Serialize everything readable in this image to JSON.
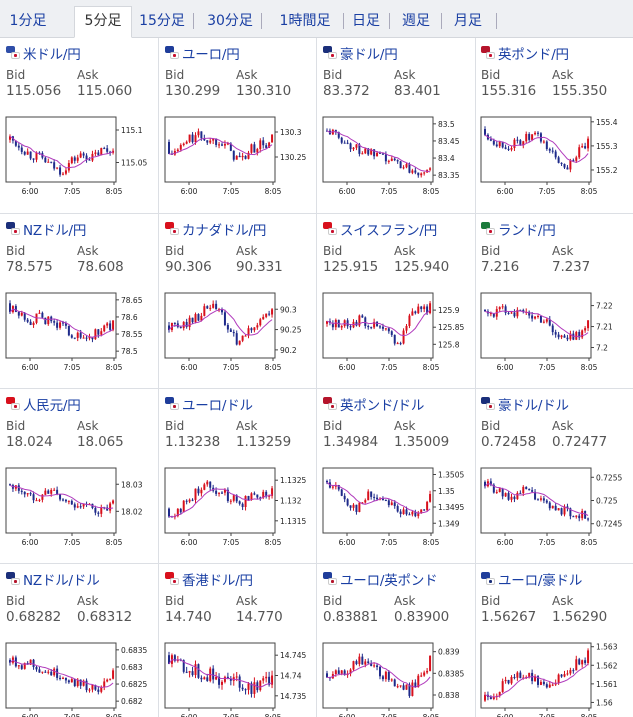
{
  "tabs": [
    {
      "label": "1分足",
      "active": false
    },
    {
      "label": "5分足",
      "active": true
    },
    {
      "label": "15分足",
      "active": false
    },
    {
      "label": "30分足",
      "active": false
    },
    {
      "label": "1時間足",
      "active": false
    },
    {
      "label": "日足",
      "active": false
    },
    {
      "label": "週足",
      "active": false
    },
    {
      "label": "月足",
      "active": false
    }
  ],
  "labels": {
    "bid": "Bid",
    "ask": "Ask"
  },
  "time_labels": [
    "6:00",
    "7:05",
    "8:05"
  ],
  "colors": {
    "up": "#d8101c",
    "down": "#1e2a8a",
    "ma": "#b13bbd",
    "link": "#1a3fa3"
  },
  "pairs": [
    {
      "name": "米ドル/円",
      "flags": [
        "#2f4ea8",
        "#c8102e"
      ],
      "bid": "115.056",
      "ask": "115.060",
      "chart_data": {
        "type": "candlestick",
        "y_ticks": [
          "115.1",
          "115.05"
        ],
        "ylim": [
          115.02,
          115.12
        ],
        "open": 115.085,
        "close": 115.068,
        "trend": [
          0.7,
          0.55,
          0.4,
          0.35,
          0.2,
          0.1,
          0.3,
          0.4,
          0.35,
          0.5,
          0.45
        ],
        "vol": 0.35
      }
    },
    {
      "name": "ユーロ/円",
      "flags": [
        "#1f3d9a",
        "#c8102e"
      ],
      "bid": "130.299",
      "ask": "130.310",
      "chart_data": {
        "type": "candlestick",
        "y_ticks": [
          "130.3",
          "130.25"
        ],
        "ylim": [
          130.2,
          130.33
        ],
        "open": 130.28,
        "close": 130.295,
        "trend": [
          0.4,
          0.5,
          0.7,
          0.75,
          0.65,
          0.7,
          0.45,
          0.3,
          0.5,
          0.6,
          0.55
        ],
        "vol": 0.45
      }
    },
    {
      "name": "豪ドル/円",
      "flags": [
        "#1b2f7a",
        "#c8102e"
      ],
      "bid": "83.372",
      "ask": "83.401",
      "chart_data": {
        "type": "candlestick",
        "y_ticks": [
          "83.5",
          "83.45",
          "83.4",
          "83.35"
        ],
        "ylim": [
          83.33,
          83.52
        ],
        "open": 83.48,
        "close": 83.37,
        "trend": [
          0.85,
          0.75,
          0.6,
          0.5,
          0.45,
          0.35,
          0.3,
          0.25,
          0.15,
          0.1,
          0.2
        ],
        "vol": 0.3
      }
    },
    {
      "name": "英ポンド/円",
      "flags": [
        "#b5142b",
        "#c8102e"
      ],
      "bid": "155.316",
      "ask": "155.350",
      "chart_data": {
        "type": "candlestick",
        "y_ticks": [
          "155.4",
          "155.3",
          "155.2"
        ],
        "ylim": [
          155.15,
          155.42
        ],
        "open": 155.37,
        "close": 155.33,
        "trend": [
          0.8,
          0.65,
          0.55,
          0.6,
          0.7,
          0.75,
          0.55,
          0.3,
          0.2,
          0.45,
          0.5
        ],
        "vol": 0.35
      }
    },
    {
      "name": "NZドル/円",
      "flags": [
        "#1b2f7a",
        "#c8102e"
      ],
      "bid": "78.575",
      "ask": "78.608",
      "chart_data": {
        "type": "candlestick",
        "y_ticks": [
          "78.65",
          "78.6",
          "78.55",
          "78.5"
        ],
        "ylim": [
          78.48,
          78.67
        ],
        "open": 78.64,
        "close": 78.59,
        "trend": [
          0.8,
          0.7,
          0.6,
          0.65,
          0.55,
          0.5,
          0.35,
          0.25,
          0.3,
          0.45,
          0.5
        ],
        "vol": 0.35
      }
    },
    {
      "name": "カナダドル/円",
      "flags": [
        "#d8101c",
        "#c8102e"
      ],
      "bid": "90.306",
      "ask": "90.331",
      "chart_data": {
        "type": "candlestick",
        "y_ticks": [
          "90.3",
          "90.25",
          "90.2"
        ],
        "ylim": [
          90.18,
          90.34
        ],
        "open": 90.26,
        "close": 90.3,
        "trend": [
          0.5,
          0.45,
          0.6,
          0.7,
          0.85,
          0.75,
          0.3,
          0.2,
          0.45,
          0.65,
          0.7
        ],
        "vol": 0.4
      }
    },
    {
      "name": "スイスフラン/円",
      "flags": [
        "#d8101c",
        "#c8102e"
      ],
      "bid": "125.915",
      "ask": "125.940",
      "chart_data": {
        "type": "candlestick",
        "y_ticks": [
          "125.9",
          "125.85",
          "125.8"
        ],
        "ylim": [
          125.76,
          125.95
        ],
        "open": 125.86,
        "close": 125.92,
        "trend": [
          0.5,
          0.55,
          0.5,
          0.6,
          0.55,
          0.45,
          0.35,
          0.15,
          0.7,
          0.85,
          0.8
        ],
        "vol": 0.35
      }
    },
    {
      "name": "ランド/円",
      "flags": [
        "#1a7a3a",
        "#c8102e"
      ],
      "bid": "7.216",
      "ask": "7.237",
      "chart_data": {
        "type": "candlestick",
        "y_ticks": [
          "7.22",
          "7.21",
          "7.2"
        ],
        "ylim": [
          7.195,
          7.226
        ],
        "open": 7.218,
        "close": 7.213,
        "trend": [
          0.7,
          0.75,
          0.8,
          0.75,
          0.7,
          0.65,
          0.6,
          0.3,
          0.25,
          0.35,
          0.5
        ],
        "vol": 0.4
      }
    },
    {
      "name": "人民元/円",
      "flags": [
        "#d8101c",
        "#c8102e"
      ],
      "bid": "18.024",
      "ask": "18.065",
      "chart_data": {
        "type": "candlestick",
        "y_ticks": [
          "18.03",
          "18.02"
        ],
        "ylim": [
          18.012,
          18.036
        ],
        "open": 18.03,
        "close": 18.024,
        "trend": [
          0.75,
          0.7,
          0.55,
          0.6,
          0.7,
          0.5,
          0.45,
          0.4,
          0.35,
          0.3,
          0.4
        ],
        "vol": 0.35
      }
    },
    {
      "name": "ユーロ/ドル",
      "flags": [
        "#1f3d9a",
        "#b5142b"
      ],
      "bid": "1.13238",
      "ask": "1.13259",
      "chart_data": {
        "type": "candlestick",
        "y_ticks": [
          "1.1325",
          "1.132",
          "1.1315"
        ],
        "ylim": [
          1.1312,
          1.1328
        ],
        "open": 1.1318,
        "close": 1.1323,
        "trend": [
          0.2,
          0.35,
          0.5,
          0.75,
          0.8,
          0.65,
          0.55,
          0.45,
          0.6,
          0.65,
          0.6
        ],
        "vol": 0.4
      }
    },
    {
      "name": "英ポンド/ドル",
      "flags": [
        "#b5142b",
        "#b5142b"
      ],
      "bid": "1.34984",
      "ask": "1.35009",
      "chart_data": {
        "type": "candlestick",
        "y_ticks": [
          "1.3505",
          "1.35",
          "1.3495",
          "1.349"
        ],
        "ylim": [
          1.3487,
          1.3507
        ],
        "open": 1.3503,
        "close": 1.3499,
        "trend": [
          0.85,
          0.7,
          0.45,
          0.35,
          0.6,
          0.55,
          0.5,
          0.3,
          0.2,
          0.35,
          0.45
        ],
        "vol": 0.35
      }
    },
    {
      "name": "豪ドル/ドル",
      "flags": [
        "#1b2f7a",
        "#b5142b"
      ],
      "bid": "0.72458",
      "ask": "0.72477",
      "chart_data": {
        "type": "candlestick",
        "y_ticks": [
          "0.7255",
          "0.725",
          "0.7245"
        ],
        "ylim": [
          0.7243,
          0.7257
        ],
        "open": 0.7254,
        "close": 0.7246,
        "trend": [
          0.8,
          0.7,
          0.55,
          0.6,
          0.7,
          0.55,
          0.4,
          0.35,
          0.3,
          0.25,
          0.2
        ],
        "vol": 0.3
      }
    },
    {
      "name": "NZドル/ドル",
      "flags": [
        "#1b2f7a",
        "#b5142b"
      ],
      "bid": "0.68282",
      "ask": "0.68312",
      "chart_data": {
        "type": "candlestick",
        "y_ticks": [
          "0.6835",
          "0.683",
          "0.6825",
          "0.682"
        ],
        "ylim": [
          0.6818,
          0.6837
        ],
        "open": 0.6832,
        "close": 0.6829,
        "trend": [
          0.8,
          0.7,
          0.75,
          0.6,
          0.55,
          0.5,
          0.4,
          0.35,
          0.25,
          0.3,
          0.45
        ],
        "vol": 0.35
      }
    },
    {
      "name": "香港ドル/円",
      "flags": [
        "#d8101c",
        "#c8102e"
      ],
      "bid": "14.740",
      "ask": "14.770",
      "chart_data": {
        "type": "candlestick",
        "y_ticks": [
          "14.745",
          "14.74",
          "14.735"
        ],
        "ylim": [
          14.732,
          14.748
        ],
        "open": 14.745,
        "close": 14.74,
        "trend": [
          0.85,
          0.75,
          0.6,
          0.55,
          0.5,
          0.45,
          0.4,
          0.35,
          0.3,
          0.4,
          0.45
        ],
        "vol": 0.8
      }
    },
    {
      "name": "ユーロ/英ポンド",
      "flags": [
        "#1f3d9a",
        "#b5142b"
      ],
      "bid": "0.83881",
      "ask": "0.83900",
      "chart_data": {
        "type": "candlestick",
        "y_ticks": [
          "0.839",
          "0.8385",
          "0.838"
        ],
        "ylim": [
          0.8377,
          0.8392
        ],
        "open": 0.8385,
        "close": 0.8389,
        "trend": [
          0.4,
          0.55,
          0.6,
          0.8,
          0.7,
          0.55,
          0.45,
          0.35,
          0.2,
          0.5,
          0.6
        ],
        "vol": 0.35
      }
    },
    {
      "name": "ユーロ/豪ドル",
      "flags": [
        "#1f3d9a",
        "#1b2f7a"
      ],
      "bid": "1.56267",
      "ask": "1.56290",
      "chart_data": {
        "type": "candlestick",
        "y_ticks": [
          "1.563",
          "1.562",
          "1.561",
          "1.56"
        ],
        "ylim": [
          1.5597,
          1.5632
        ],
        "open": 1.5601,
        "close": 1.5628,
        "trend": [
          0.1,
          0.2,
          0.35,
          0.55,
          0.5,
          0.4,
          0.35,
          0.45,
          0.6,
          0.75,
          0.85
        ],
        "vol": 0.4
      }
    }
  ]
}
